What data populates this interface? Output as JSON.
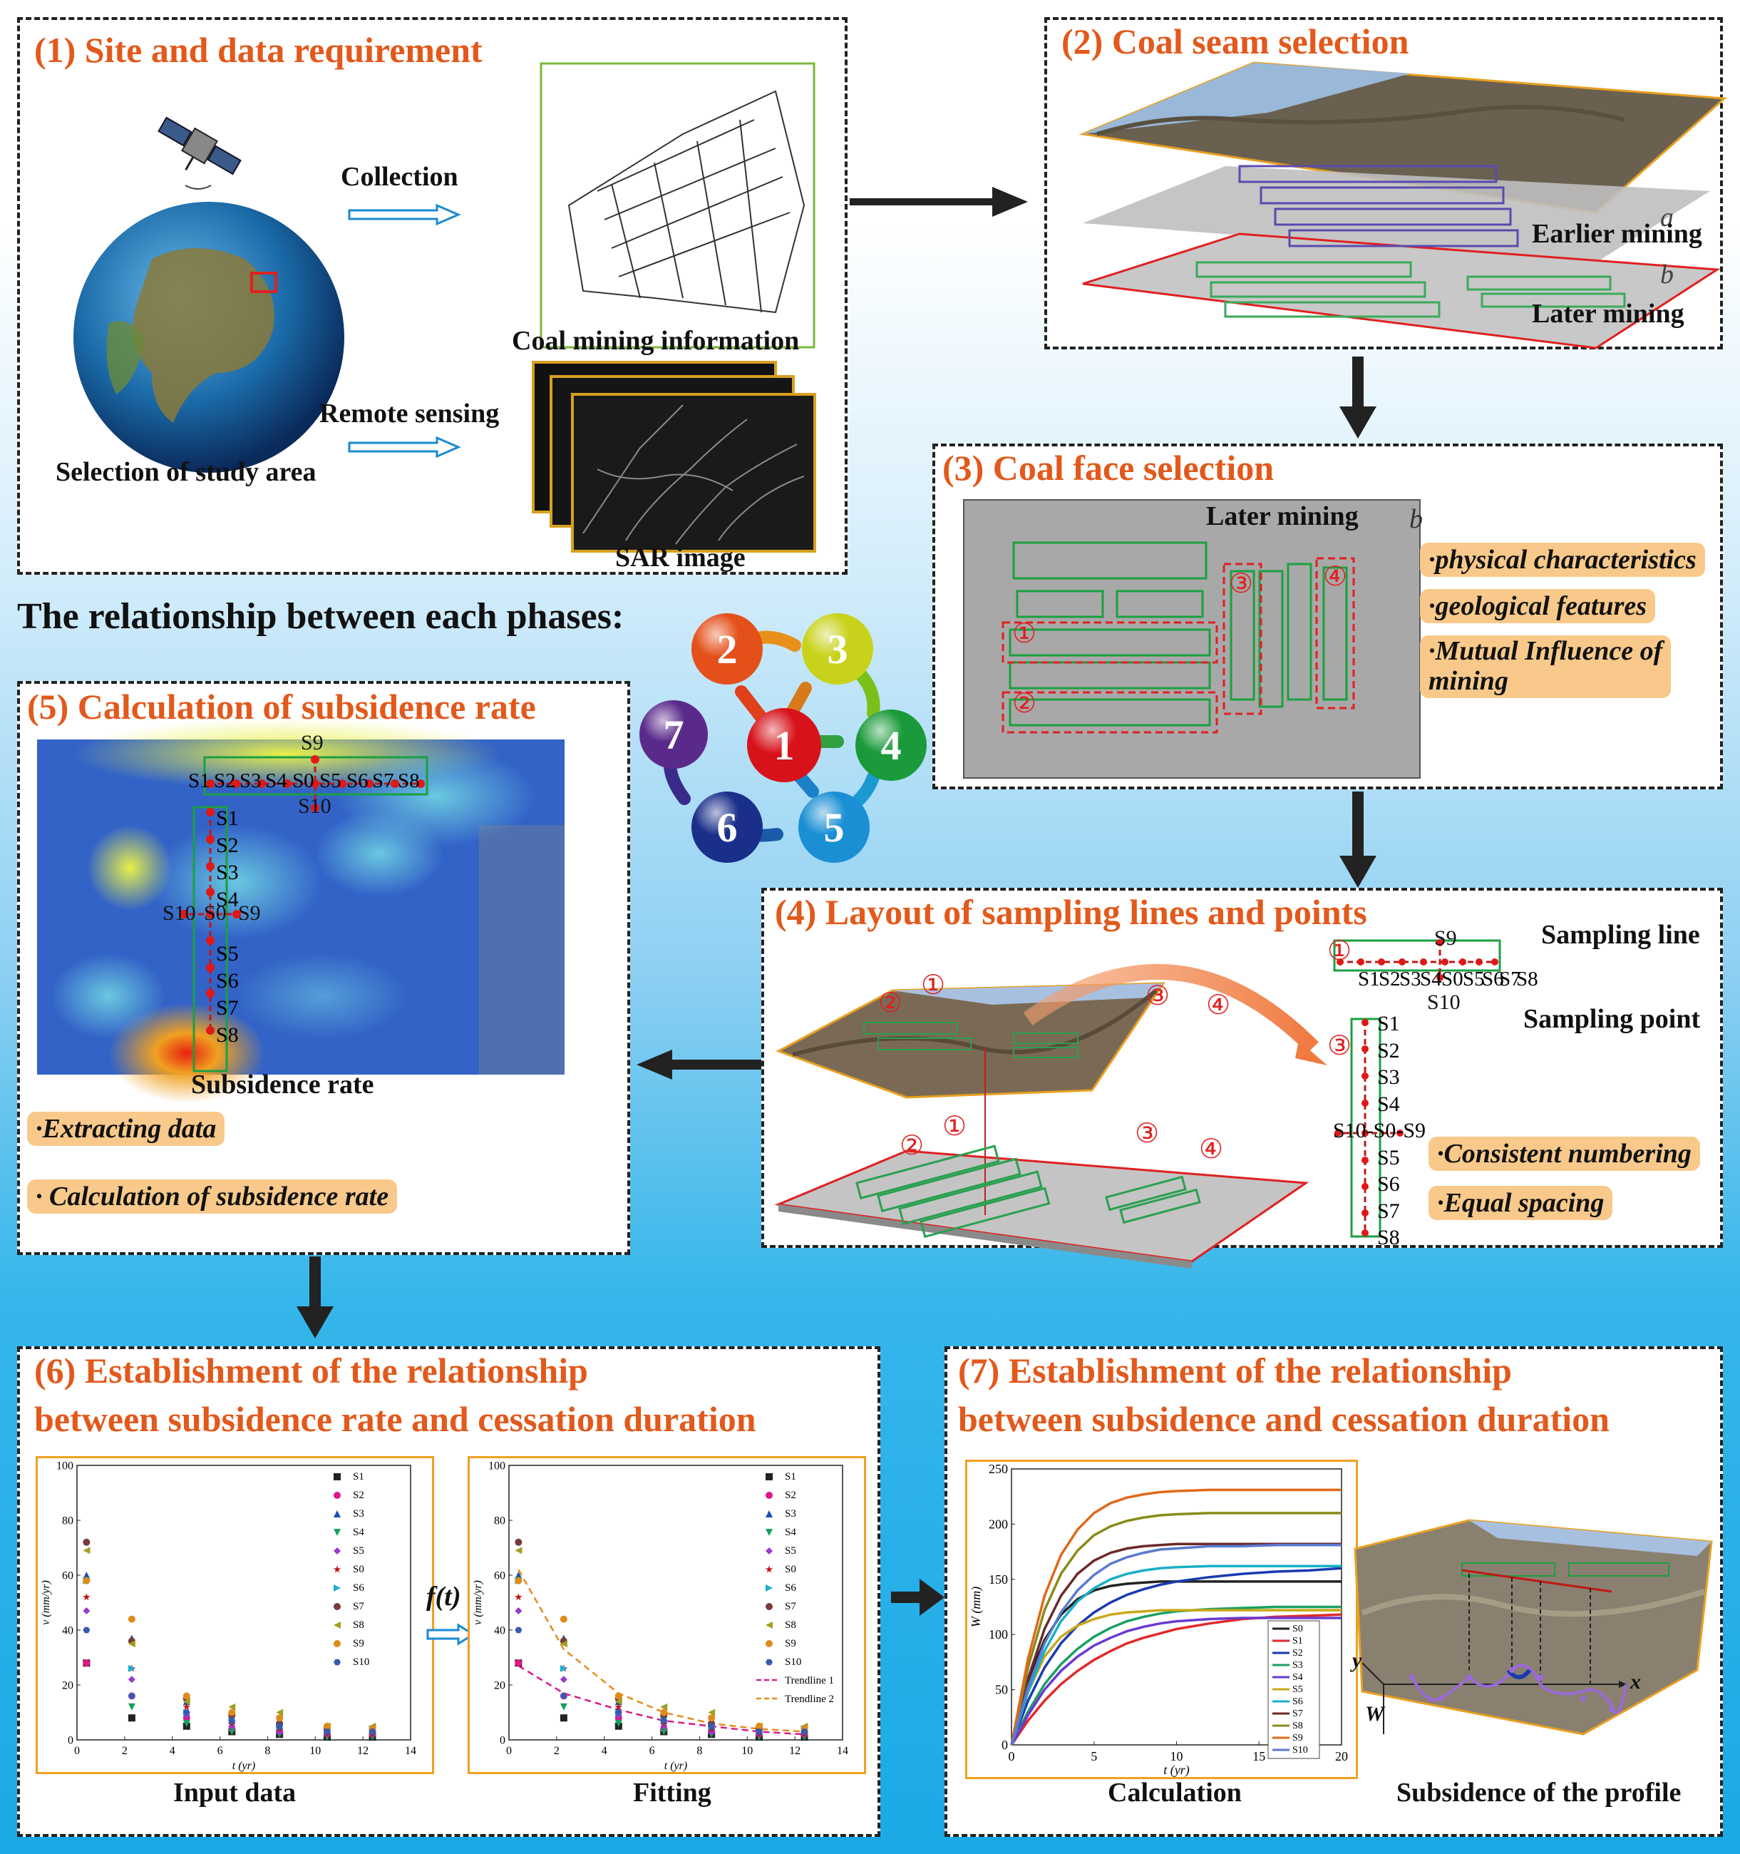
{
  "relationship_title": "The relationship between each phases:",
  "cycle_nodes": [
    {
      "label": "1",
      "color": "#d8121b"
    },
    {
      "label": "2",
      "color": "#e4501a"
    },
    {
      "label": "3",
      "color": "#c8d21a"
    },
    {
      "label": "4",
      "color": "#1a9a3a"
    },
    {
      "label": "5",
      "color": "#1a8fd4"
    },
    {
      "label": "6",
      "color": "#1a2f8a"
    },
    {
      "label": "7",
      "color": "#5a2a8a"
    }
  ],
  "p1": {
    "title": "(1) Site and data requirement",
    "collection": "Collection",
    "coal_info": "Coal mining information",
    "remote": "Remote sensing",
    "study_area": "Selection of study area",
    "sar": "SAR image"
  },
  "p2": {
    "title": "(2) Coal seam selection",
    "a": "a",
    "b": "b",
    "earlier": "Earlier mining",
    "later": "Later mining"
  },
  "p3": {
    "title": "(3) Coal face selection",
    "later": "Later mining",
    "b": "b",
    "c1": "①",
    "c2": "②",
    "c3": "③",
    "c4": "④",
    "tags": [
      "·physical characteristics",
      "·geological features",
      "·Mutual Influence of",
      "mining"
    ]
  },
  "p4": {
    "title": "(4) Layout of sampling lines and points",
    "sampling_line": "Sampling line",
    "sampling_point": "Sampling point",
    "c1": "①",
    "c2": "②",
    "c3": "③",
    "c4": "④",
    "row_labels": [
      "S1",
      "S2",
      "S3",
      "S4",
      "S0",
      "S5",
      "S6",
      "S7",
      "S8"
    ],
    "s9": "S9",
    "s10": "S10",
    "col_labels": [
      "S1",
      "S2",
      "S3",
      "S4",
      "S0",
      "S5",
      "S6",
      "S7",
      "S8"
    ],
    "mid_row": "S10-S0-S9",
    "tags": [
      "·Consistent numbering",
      "·Equal spacing"
    ]
  },
  "p5": {
    "title": "(5) Calculation of subsidence rate",
    "caption": "Subsidence rate",
    "row_labels": [
      "S1",
      "S2",
      "S3",
      "S4",
      "S0",
      "S5",
      "S6",
      "S7",
      "S8"
    ],
    "s9": "S9",
    "s10": "S10",
    "col_labels": [
      "S1",
      "S2",
      "S3",
      "S4",
      "S0",
      "S5",
      "S6",
      "S7",
      "S8"
    ],
    "mid_left": "S10",
    "mid_center": "S0",
    "mid_right": "S9",
    "tags": [
      "·Extracting data",
      "· Calculation of subsidence rate"
    ]
  },
  "p6": {
    "title_line1": "(6) Establishment of the relationship",
    "title_line2": "between subsidence rate and cessation duration",
    "caption_left": "Input data",
    "caption_right": "Fitting",
    "ft": "f(t)",
    "xlabel": "t (yr)",
    "ylabel": "v (mm/yr)"
  },
  "p7": {
    "title_line1": "(7) Establishment of the relationship",
    "title_line2": "between subsidence and cessation duration",
    "caption_left": "Calculation",
    "caption_right": "Subsidence of the profile",
    "axis_y": "y",
    "axis_x": "x",
    "axis_w": "W"
  },
  "chart_data": [
    {
      "type": "scatter",
      "title": "Input data",
      "xlabel": "t (yr)",
      "ylabel": "v (mm/yr)",
      "xlim": [
        0,
        14
      ],
      "ylim": [
        0,
        100
      ],
      "xticks": [
        0,
        2,
        4,
        6,
        8,
        10,
        12,
        14
      ],
      "yticks": [
        0,
        20,
        40,
        60,
        80,
        100
      ],
      "x": [
        0.4,
        2.3,
        4.6,
        6.5,
        8.5,
        10.5,
        12.4
      ],
      "series": [
        {
          "name": "S1",
          "color": "#222222",
          "marker": "square",
          "values": [
            28,
            8,
            5,
            3,
            2,
            1,
            1
          ]
        },
        {
          "name": "S2",
          "color": "#e0168a",
          "marker": "circle",
          "values": [
            28,
            16,
            8,
            4,
            3,
            2,
            2
          ]
        },
        {
          "name": "S3",
          "color": "#1a4fb0",
          "marker": "triangle",
          "values": [
            60,
            37,
            14,
            7,
            5,
            3,
            3
          ]
        },
        {
          "name": "S4",
          "color": "#18a060",
          "marker": "triangle-down",
          "values": [
            58,
            12,
            6,
            3,
            2,
            1,
            1
          ]
        },
        {
          "name": "S5",
          "color": "#9a3ad0",
          "marker": "diamond",
          "values": [
            47,
            22,
            9,
            5,
            3,
            2,
            2
          ]
        },
        {
          "name": "S0",
          "color": "#c01818",
          "marker": "star",
          "values": [
            52,
            26,
            12,
            6,
            4,
            2,
            2
          ]
        },
        {
          "name": "S6",
          "color": "#18b0d0",
          "marker": "triangle-right",
          "values": [
            58,
            26,
            10,
            8,
            5,
            4,
            4
          ]
        },
        {
          "name": "S7",
          "color": "#7a3a3a",
          "marker": "circle",
          "values": [
            72,
            36,
            15,
            9,
            6,
            4,
            3
          ]
        },
        {
          "name": "S8",
          "color": "#a0a020",
          "marker": "triangle-left",
          "values": [
            69,
            35,
            14,
            12,
            10,
            5,
            5
          ]
        },
        {
          "name": "S9",
          "color": "#e08a1a",
          "marker": "circle",
          "values": [
            58,
            44,
            16,
            10,
            8,
            5,
            4
          ]
        },
        {
          "name": "S10",
          "color": "#3a5ab0",
          "marker": "hexagon",
          "values": [
            40,
            16,
            10,
            7,
            5,
            3,
            3
          ]
        }
      ]
    },
    {
      "type": "scatter",
      "title": "Fitting",
      "xlabel": "t (yr)",
      "ylabel": "v (mm/yr)",
      "xlim": [
        0,
        14
      ],
      "ylim": [
        0,
        100
      ],
      "xticks": [
        0,
        2,
        4,
        6,
        8,
        10,
        12,
        14
      ],
      "yticks": [
        0,
        20,
        40,
        60,
        80,
        100
      ],
      "x": [
        0.4,
        2.3,
        4.6,
        6.5,
        8.5,
        10.5,
        12.4
      ],
      "series": [
        {
          "name": "S1",
          "color": "#222222",
          "marker": "square",
          "values": [
            28,
            8,
            5,
            3,
            2,
            1,
            1
          ]
        },
        {
          "name": "S2",
          "color": "#e0168a",
          "marker": "circle",
          "values": [
            28,
            16,
            8,
            4,
            3,
            2,
            2
          ]
        },
        {
          "name": "S3",
          "color": "#1a4fb0",
          "marker": "triangle",
          "values": [
            60,
            37,
            14,
            7,
            5,
            3,
            3
          ]
        },
        {
          "name": "S4",
          "color": "#18a060",
          "marker": "triangle-down",
          "values": [
            58,
            12,
            6,
            3,
            2,
            1,
            1
          ]
        },
        {
          "name": "S5",
          "color": "#9a3ad0",
          "marker": "diamond",
          "values": [
            47,
            22,
            9,
            5,
            3,
            2,
            2
          ]
        },
        {
          "name": "S0",
          "color": "#c01818",
          "marker": "star",
          "values": [
            52,
            26,
            12,
            6,
            4,
            2,
            2
          ]
        },
        {
          "name": "S6",
          "color": "#18b0d0",
          "marker": "triangle-right",
          "values": [
            58,
            26,
            10,
            8,
            5,
            4,
            4
          ]
        },
        {
          "name": "S7",
          "color": "#7a3a3a",
          "marker": "circle",
          "values": [
            72,
            36,
            15,
            9,
            6,
            4,
            3
          ]
        },
        {
          "name": "S8",
          "color": "#a0a020",
          "marker": "triangle-left",
          "values": [
            69,
            35,
            14,
            12,
            10,
            5,
            5
          ]
        },
        {
          "name": "S9",
          "color": "#e08a1a",
          "marker": "circle",
          "values": [
            58,
            44,
            16,
            10,
            8,
            5,
            4
          ]
        },
        {
          "name": "S10",
          "color": "#3a5ab0",
          "marker": "hexagon",
          "values": [
            40,
            16,
            10,
            7,
            5,
            3,
            3
          ]
        }
      ],
      "trendlines": [
        {
          "name": "Trendline 1",
          "color": "#d81a8a",
          "values": [
            27,
            17,
            11,
            7,
            5,
            3,
            2
          ]
        },
        {
          "name": "Trendline 2",
          "color": "#e88a1a",
          "values": [
            62,
            33,
            17,
            10,
            6,
            4,
            3
          ]
        }
      ]
    },
    {
      "type": "line",
      "title": "Calculation",
      "xlabel": "t (yr)",
      "ylabel": "W (mm)",
      "xlim": [
        0,
        20
      ],
      "ylim": [
        0,
        250
      ],
      "xticks": [
        0,
        5,
        10,
        15,
        20
      ],
      "yticks": [
        0,
        50,
        100,
        150,
        200,
        250
      ],
      "x": [
        0,
        1,
        2,
        3,
        4,
        5,
        6,
        7,
        8,
        9,
        10,
        12,
        14,
        16,
        18,
        20
      ],
      "series": [
        {
          "name": "S0",
          "color": "#222222",
          "values": [
            0,
            58,
            95,
            118,
            132,
            140,
            144,
            146,
            147,
            148,
            148,
            148,
            148,
            148,
            148,
            148
          ]
        },
        {
          "name": "S1",
          "color": "#e02a2a",
          "values": [
            0,
            22,
            40,
            55,
            67,
            77,
            85,
            92,
            97,
            101,
            105,
            110,
            114,
            116,
            117,
            118
          ]
        },
        {
          "name": "S2",
          "color": "#1a3ab0",
          "values": [
            0,
            40,
            70,
            92,
            108,
            120,
            129,
            136,
            141,
            145,
            148,
            152,
            155,
            157,
            158,
            160
          ]
        },
        {
          "name": "S3",
          "color": "#18a060",
          "values": [
            0,
            30,
            55,
            73,
            87,
            98,
            106,
            112,
            116,
            119,
            121,
            123,
            124,
            125,
            125,
            125
          ]
        },
        {
          "name": "S4",
          "color": "#6a3ad0",
          "values": [
            0,
            27,
            50,
            67,
            80,
            90,
            97,
            103,
            107,
            110,
            112,
            114,
            115,
            115,
            115,
            115
          ]
        },
        {
          "name": "S5",
          "color": "#c8a818",
          "values": [
            0,
            48,
            80,
            98,
            108,
            114,
            118,
            120,
            121,
            122,
            122,
            122,
            122,
            122,
            122,
            122
          ]
        },
        {
          "name": "S6",
          "color": "#18b0c8",
          "values": [
            0,
            48,
            85,
            112,
            130,
            142,
            150,
            155,
            158,
            160,
            161,
            162,
            162,
            162,
            162,
            162
          ]
        },
        {
          "name": "S7",
          "color": "#6a2a2a",
          "values": [
            0,
            60,
            105,
            135,
            155,
            167,
            174,
            178,
            180,
            181,
            182,
            182,
            182,
            182,
            182,
            182
          ]
        },
        {
          "name": "S8",
          "color": "#8a8a1a",
          "values": [
            0,
            70,
            122,
            155,
            176,
            190,
            198,
            203,
            206,
            208,
            209,
            210,
            210,
            210,
            210,
            210
          ]
        },
        {
          "name": "S9",
          "color": "#e0681a",
          "values": [
            0,
            78,
            135,
            172,
            195,
            210,
            219,
            224,
            227,
            229,
            230,
            231,
            231,
            231,
            231,
            231
          ]
        },
        {
          "name": "S10",
          "color": "#5a7ad0",
          "values": [
            0,
            52,
            92,
            120,
            140,
            154,
            164,
            170,
            174,
            177,
            178,
            180,
            180,
            181,
            181,
            181
          ]
        }
      ]
    }
  ]
}
